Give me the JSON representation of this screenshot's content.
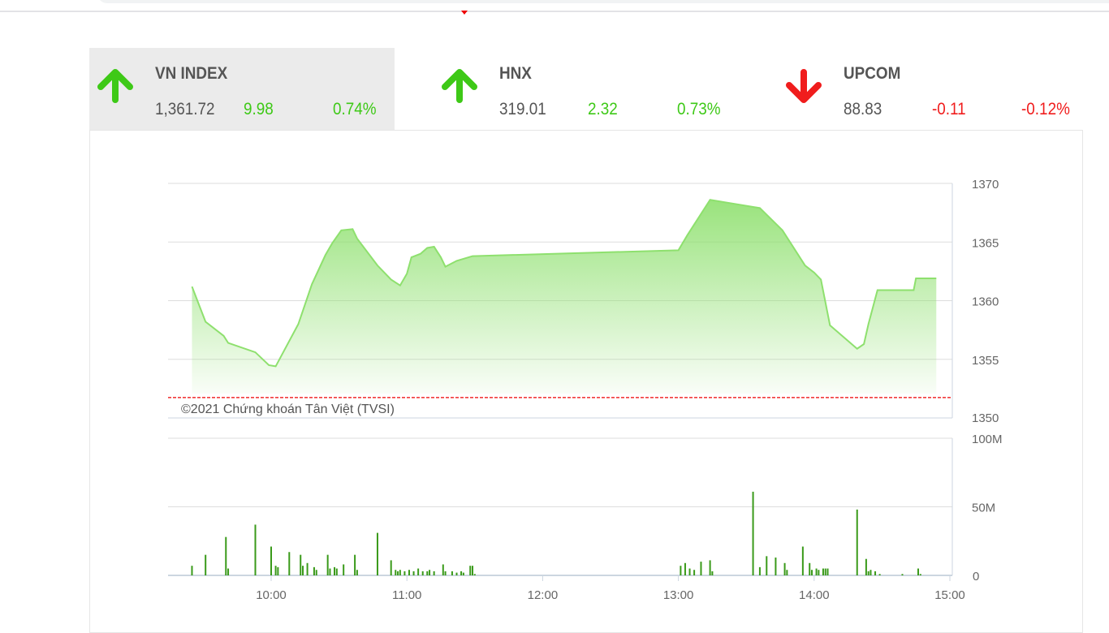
{
  "indices": [
    {
      "name": "VN INDEX",
      "value": "1,361.72",
      "change": "9.98",
      "percent": "0.74%",
      "direction": "up",
      "active": true
    },
    {
      "name": "HNX",
      "value": "319.01",
      "change": "2.32",
      "percent": "0.73%",
      "direction": "up",
      "active": false
    },
    {
      "name": "UPCOM",
      "value": "88.83",
      "change": "-0.11",
      "percent": "-0.12%",
      "direction": "down",
      "active": false
    }
  ],
  "colors": {
    "up": "#3ec917",
    "down": "#f01d1d",
    "line": "#8ee06e",
    "bar": "#3a9a1a",
    "reference": "#e00000"
  },
  "chart_data": {
    "type": "area",
    "credit": "©2021 Chứng khoán Tân Việt (TVSI)",
    "price": {
      "ylim": [
        1350,
        1370
      ],
      "yticks": [
        "1370",
        "1365",
        "1360",
        "1355",
        "1350"
      ],
      "reference": 1351.74,
      "points": [
        [
          "09:25",
          1361.2
        ],
        [
          "09:31",
          1358.2
        ],
        [
          "09:39",
          1357.0
        ],
        [
          "09:41",
          1356.4
        ],
        [
          "09:53",
          1355.6
        ],
        [
          "09:59",
          1354.5
        ],
        [
          "10:02",
          1354.4
        ],
        [
          "10:12",
          1358.0
        ],
        [
          "10:18",
          1361.4
        ],
        [
          "10:24",
          1363.9
        ],
        [
          "10:27",
          1364.9
        ],
        [
          "10:31",
          1366.0
        ],
        [
          "10:36",
          1366.1
        ],
        [
          "10:38",
          1365.3
        ],
        [
          "10:47",
          1363.0
        ],
        [
          "10:53",
          1361.8
        ],
        [
          "10:57",
          1361.3
        ],
        [
          "11:00",
          1362.3
        ],
        [
          "11:02",
          1363.7
        ],
        [
          "11:06",
          1364.0
        ],
        [
          "11:09",
          1364.5
        ],
        [
          "11:12",
          1364.6
        ],
        [
          "11:15",
          1363.7
        ],
        [
          "11:17",
          1362.9
        ],
        [
          "11:22",
          1363.4
        ],
        [
          "11:29",
          1363.8
        ],
        [
          "13:00",
          1364.3
        ],
        [
          "13:04",
          1365.6
        ],
        [
          "13:14",
          1368.6
        ],
        [
          "13:36",
          1367.9
        ],
        [
          "13:46",
          1366.0
        ],
        [
          "13:56",
          1363.0
        ],
        [
          "14:00",
          1362.4
        ],
        [
          "14:03",
          1361.8
        ],
        [
          "14:07",
          1357.9
        ],
        [
          "14:19",
          1355.9
        ],
        [
          "14:22",
          1356.3
        ],
        [
          "14:24",
          1358.0
        ],
        [
          "14:28",
          1360.9
        ],
        [
          "14:44",
          1360.9
        ],
        [
          "14:45",
          1361.9
        ],
        [
          "14:54",
          1361.9
        ]
      ]
    },
    "volume": {
      "ylim": [
        0,
        100
      ],
      "yticks": [
        "100M",
        "50M",
        "0"
      ],
      "unit": "M",
      "bars": [
        [
          "09:25",
          7
        ],
        [
          "09:31",
          15
        ],
        [
          "09:40",
          28
        ],
        [
          "09:41",
          5
        ],
        [
          "09:53",
          37
        ],
        [
          "10:00",
          21
        ],
        [
          "10:02",
          7
        ],
        [
          "10:03",
          6
        ],
        [
          "10:08",
          17
        ],
        [
          "10:13",
          15
        ],
        [
          "10:14",
          7
        ],
        [
          "10:16",
          9
        ],
        [
          "10:19",
          6
        ],
        [
          "10:20",
          4
        ],
        [
          "10:25",
          15
        ],
        [
          "10:26",
          5
        ],
        [
          "10:28",
          6
        ],
        [
          "10:29",
          5
        ],
        [
          "10:32",
          8
        ],
        [
          "10:37",
          15
        ],
        [
          "10:38",
          4
        ],
        [
          "10:47",
          31
        ],
        [
          "10:53",
          11
        ],
        [
          "10:55",
          4
        ],
        [
          "10:56",
          3
        ],
        [
          "10:57",
          4
        ],
        [
          "10:59",
          3
        ],
        [
          "11:01",
          4
        ],
        [
          "11:03",
          3
        ],
        [
          "11:05",
          5
        ],
        [
          "11:07",
          3
        ],
        [
          "11:09",
          3
        ],
        [
          "11:10",
          4
        ],
        [
          "11:12",
          3
        ],
        [
          "11:16",
          8
        ],
        [
          "11:17",
          3
        ],
        [
          "11:20",
          3
        ],
        [
          "11:22",
          2
        ],
        [
          "11:24",
          3
        ],
        [
          "11:25",
          2
        ],
        [
          "11:28",
          7
        ],
        [
          "11:29",
          7
        ],
        [
          "11:30",
          1
        ],
        [
          "13:01",
          7
        ],
        [
          "13:03",
          9
        ],
        [
          "13:05",
          5
        ],
        [
          "13:07",
          4
        ],
        [
          "13:10",
          10
        ],
        [
          "13:14",
          11
        ],
        [
          "13:15",
          3
        ],
        [
          "13:33",
          61
        ],
        [
          "13:36",
          6
        ],
        [
          "13:39",
          14
        ],
        [
          "13:43",
          13
        ],
        [
          "13:47",
          9
        ],
        [
          "13:48",
          4
        ],
        [
          "13:55",
          21
        ],
        [
          "13:58",
          9
        ],
        [
          "13:59",
          4
        ],
        [
          "14:01",
          5
        ],
        [
          "14:02",
          4
        ],
        [
          "14:04",
          5
        ],
        [
          "14:05",
          5
        ],
        [
          "14:06",
          5
        ],
        [
          "14:19",
          48
        ],
        [
          "14:23",
          12
        ],
        [
          "14:24",
          3
        ],
        [
          "14:25",
          4
        ],
        [
          "14:27",
          3
        ],
        [
          "14:29",
          1
        ],
        [
          "14:39",
          1
        ],
        [
          "14:46",
          5
        ],
        [
          "14:47",
          1
        ]
      ]
    },
    "xticks": [
      "10:00",
      "11:00",
      "12:00",
      "13:00",
      "14:00",
      "15:00"
    ]
  }
}
